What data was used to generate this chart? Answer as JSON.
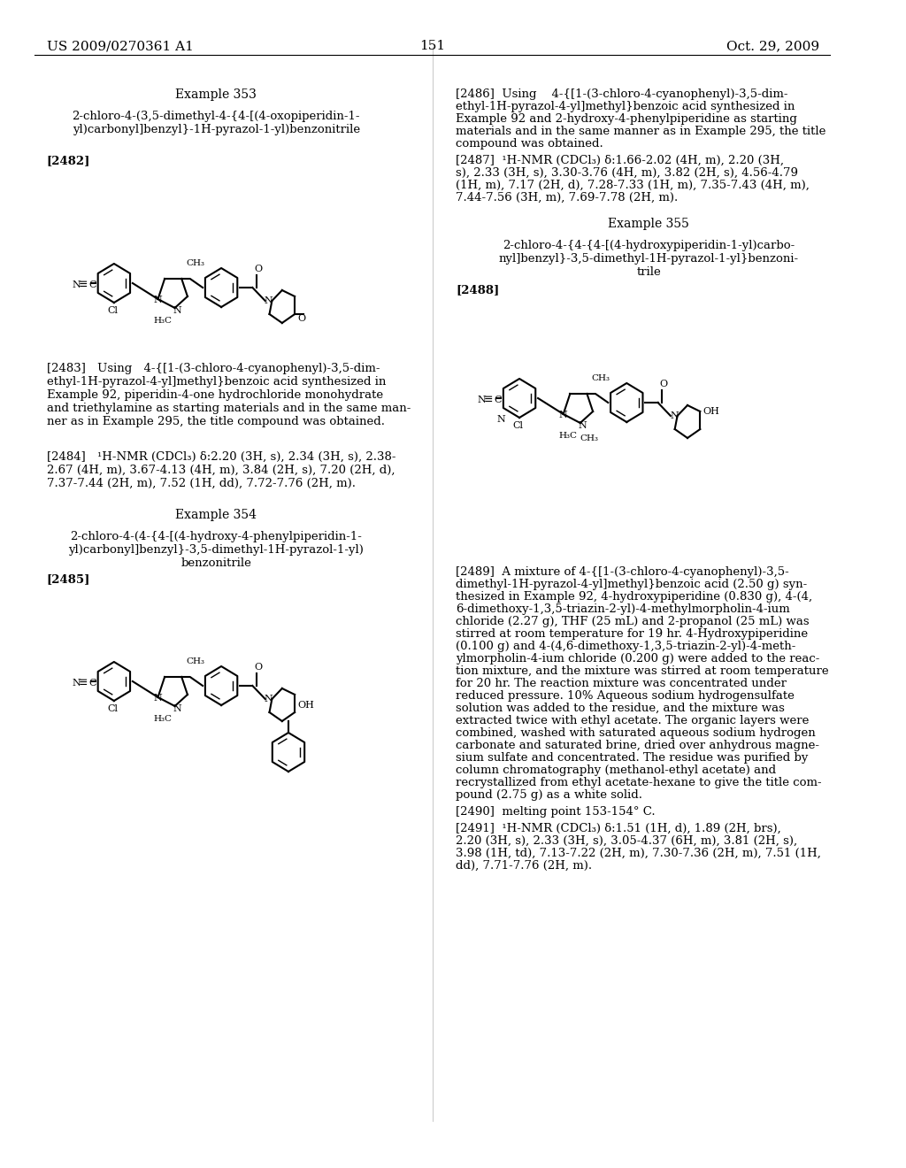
{
  "page_header_left": "US 2009/0270361 A1",
  "page_header_right": "Oct. 29, 2009",
  "page_number": "151",
  "background_color": "#ffffff",
  "text_color": "#000000",
  "font_size_header": 11,
  "font_size_body": 9.5,
  "font_size_title": 10,
  "font_size_bold": 9.5,
  "example353_title": "Example 353",
  "example353_compound": "2-chloro-4-(3,5-dimethyl-4-{4-[(4-oxopiperidin-1-\nyl)carbonyl]benzyl}-1H-pyrazol-1-yl)benzonitrile",
  "example353_ref": "[2482]",
  "example353_text2483": "[2483] Using 4-{[1-(3-chloro-4-cyanophenyl)-3,5-dim-\nethyl-1H-pyrazol-4-yl]methyl}benzoic acid synthesized in\nExample 92, piperidin-4-one hydrochloride monohydrate\nand triethylamine as starting materials and in the same man-\nner as in Example 295, the title compound was obtained.",
  "example353_nmr2484": "[2484] ¹H-NMR (CDCl₃) δ:2.20 (3H, s), 2.34 (3H, s), 2.38-\n2.67 (4H, m), 3.67-4.13 (4H, m), 3.84 (2H, s), 7.20 (2H, d),\n7.37-7.44 (2H, m), 7.52 (1H, dd), 7.72-7.76 (2H, m).",
  "example354_title": "Example 354",
  "example354_compound": "2-chloro-4-(4-{4-[(4-hydroxy-4-phenylpiperidin-1-\nyl)carbonyl]benzyl}-3,5-dimethyl-1H-pyrazol-1-yl)\nbenzonitrile",
  "example354_ref": "[2485]",
  "example355_title": "Example 355",
  "example355_compound": "2-chloro-4-{4-{4-[(4-hydroxypiperidin-1-yl)carbo-\nnyl]benzyl}-3,5-dimethyl-1H-pyrazol-1-yl}benzoni-\ntrile",
  "example355_ref": "[2488]",
  "right_2486": "[2486] Using 4-{[1-(3-chloro-4-cyanophenyl)-3,5-dim-\nethyl-1H-pyrazol-4-yl]methyl}benzoic acid synthesized in\nExample 92 and 2-hydroxy-4-phenylpiperidine as starting\nmaterials and in the same manner as in Example 295, the title\ncompound was obtained.",
  "right_2487": "[2487] ¹H-NMR (CDCl₃) δ:1.66-2.02 (4H, m), 2.20 (3H,\ns), 2.33 (3H, s), 3.30-3.76 (4H, m), 3.82 (2H, s), 4.56-4.79\n(1H, m), 7.17 (2H, d), 7.28-7.33 (1H, m), 7.35-7.43 (4H, m),\n7.44-7.56 (3H, m), 7.69-7.78 (2H, m).",
  "right_2489": "[2489] A mixture of 4-{[1-(3-chloro-4-cyanophenyl)-3,5-\ndimethyl-1H-pyrazol-4-yl]methyl}benzoic acid (2.50 g) syn-\nthesized in Example 92, 4-hydroxypiperidine (0.830 g), 4-(4,\n6-dimethoxy-1,3,5-triazin-2-yl)-4-methylmorpholin-4-ium\nchloride (2.27 g), THF (25 mL) and 2-propanol (25 mL) was\nstirred at room temperature for 19 hr. 4-Hydroxypiperidine\n(0.100 g) and 4-(4,6-dimethoxy-1,3,5-triazin-2-yl)-4-meth-\nylmorpholin-4-ium chloride (0.200 g) were added to the reac-\ntion mixture, and the mixture was stirred at room temperature\nfor 20 hr. The reaction mixture was concentrated under\nreduced pressure. 10% Aqueous sodium hydrogensulfate\nsolution was added to the residue, and the mixture was\nextracted twice with ethyl acetate. The organic layers were\ncombined, washed with saturated aqueous sodium hydrogen\ncarbonate and saturated brine, dried over anhydrous magne-\nsium sulfate and concentrated. The residue was purified by\ncolumn chromatography (methanol-ethyl acetate) and\nrecrystallized from ethyl acetate-hexane to give the title com-\npound (2.75 g) as a white solid.",
  "right_2490": "[2490] melting point 153-154° C.",
  "right_2491": "[2491] ¹H-NMR (CDCl₃) δ:1.51 (1H, d), 1.89 (2H, brs),\n2.20 (3H, s), 2.33 (3H, s), 3.05-4.37 (6H, m), 3.81 (2H, s),\n3.98 (1H, td), 7.13-7.22 (2H, m), 7.30-7.36 (2H, m), 7.51 (1H,\ndd), 7.71-7.76 (2H, m)."
}
